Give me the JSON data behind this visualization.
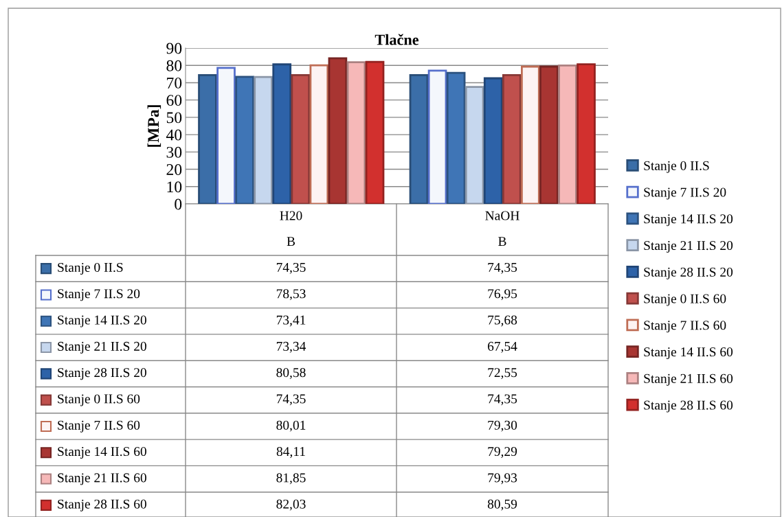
{
  "chart_data": {
    "type": "bar",
    "title": "Tlačne",
    "ylabel": "[MPa]",
    "categories": [
      "H20\nB",
      "NaOH\nB"
    ],
    "ylim": [
      0,
      90
    ],
    "yticks": [
      0,
      10,
      20,
      30,
      40,
      50,
      60,
      70,
      80,
      90
    ],
    "grid": "y",
    "legend": "right",
    "data_labels": true,
    "series": [
      {
        "name": "Stanje 0 II.S",
        "color": "#3b6ea8",
        "values": [
          74.35,
          74.35
        ],
        "value_labels": [
          "74,35",
          "74,35"
        ]
      },
      {
        "name": "Stanje 7 II.S 20",
        "color": "#f4f7fc",
        "values": [
          78.53,
          76.95
        ],
        "value_labels": [
          "78,53",
          "76,95"
        ]
      },
      {
        "name": "Stanje 14 II.S 20",
        "color": "#3f75b6",
        "values": [
          73.41,
          75.68
        ],
        "value_labels": [
          "73,41",
          "75,68"
        ]
      },
      {
        "name": "Stanje 21 II.S 20",
        "color": "#c6d7ee",
        "values": [
          73.34,
          67.54
        ],
        "value_labels": [
          "73,34",
          "67,54"
        ]
      },
      {
        "name": "Stanje 28 II.S 20",
        "color": "#2d62a8",
        "values": [
          80.58,
          72.55
        ],
        "value_labels": [
          "80,58",
          "72,55"
        ]
      },
      {
        "name": "Stanje 0 II.S 60",
        "color": "#c0504d",
        "values": [
          74.35,
          74.35
        ],
        "value_labels": [
          "74,35",
          "74,35"
        ]
      },
      {
        "name": "Stanje 7 II.S 60",
        "color": "#fdf3f3",
        "values": [
          80.01,
          79.3
        ],
        "value_labels": [
          "80,01",
          "79,30"
        ]
      },
      {
        "name": "Stanje 14 II.S 60",
        "color": "#a83532",
        "values": [
          84.11,
          79.29
        ],
        "value_labels": [
          "84,11",
          "79,29"
        ]
      },
      {
        "name": "Stanje 21 II.S 60",
        "color": "#f6b8b8",
        "values": [
          81.85,
          79.93
        ],
        "value_labels": [
          "81,85",
          "79,93"
        ]
      },
      {
        "name": "Stanje 28 II.S 60",
        "color": "#d2302e",
        "values": [
          82.03,
          80.59
        ],
        "value_labels": [
          "82,03",
          "80,59"
        ]
      }
    ]
  }
}
